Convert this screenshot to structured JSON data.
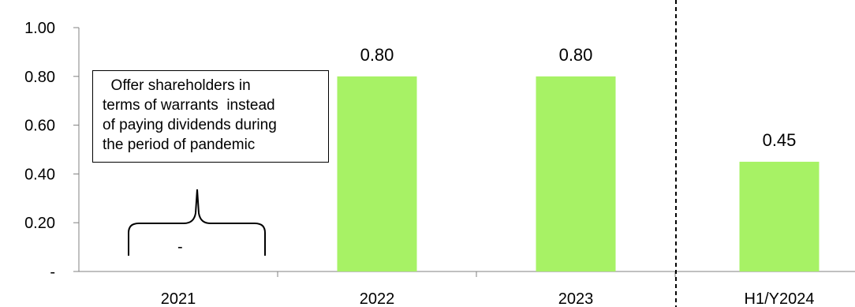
{
  "chart_data": {
    "type": "bar",
    "categories": [
      "2021",
      "2022",
      "2023",
      "H1/Y2024"
    ],
    "values": [
      0,
      0.8,
      0.8,
      0.45
    ],
    "data_labels": [
      "-",
      "0.80",
      "0.80",
      "0.45"
    ],
    "y_ticks": [
      "-",
      "0.20",
      "0.40",
      "0.60",
      "0.80",
      "1.00"
    ],
    "y_tick_values": [
      0,
      0.2,
      0.4,
      0.6,
      0.8,
      1.0
    ],
    "ylim": [
      0,
      1.0
    ],
    "bar_color": "#a7f265",
    "divider": "dashed vertical line between 2023 and H1/Y2024",
    "annotation": {
      "lines": [
        "  Offer shareholders in",
        "terms of warrants  instead",
        "of paying dividends during",
        "the period of pandemic"
      ]
    }
  }
}
